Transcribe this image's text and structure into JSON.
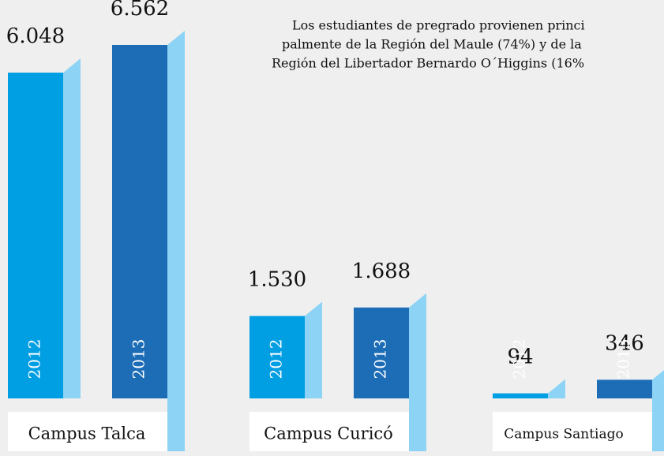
{
  "chart_data": {
    "type": "bar",
    "annotation": [
      "Los estudiantes de pregrado provienen princi",
      "palmente de la Región del Maule (74%) y de la",
      "Región del Libertador Bernardo O´Higgins (16%"
    ],
    "categories": [
      "Campus Talca",
      "Campus Curicó",
      "Campus Santiago"
    ],
    "series": [
      {
        "name": "2012",
        "color": "#009ee2",
        "values": [
          6048,
          1530,
          94
        ],
        "value_labels": [
          "6.048",
          "1.530",
          "94"
        ]
      },
      {
        "name": "2013",
        "color": "#1c6db6",
        "values": [
          6562,
          1688,
          346
        ],
        "value_labels": [
          "6.562",
          "1.688",
          "346"
        ]
      }
    ]
  }
}
